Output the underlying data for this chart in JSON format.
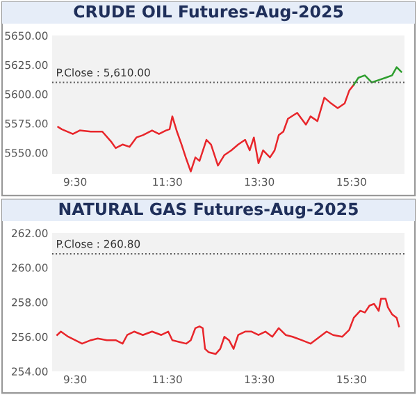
{
  "chart_data": [
    {
      "type": "line",
      "title": "CRUDE OIL Futures-Aug-2025",
      "xlim": [
        9.0,
        16.65
      ],
      "ylim": [
        5532,
        5650
      ],
      "xticks": [
        {
          "value": 9.5,
          "label": "9:30"
        },
        {
          "value": 11.5,
          "label": "11:30"
        },
        {
          "value": 13.5,
          "label": "13:30"
        },
        {
          "value": 15.5,
          "label": "15:30"
        }
      ],
      "yticks": [
        {
          "value": 5550,
          "label": "5550.00"
        },
        {
          "value": 5575,
          "label": "5575.00"
        },
        {
          "value": 5600,
          "label": "5600.00"
        },
        {
          "value": 5625,
          "label": "5625.00"
        },
        {
          "value": 5650,
          "label": "5650.00"
        }
      ],
      "ref_lines": [
        {
          "axis": "y",
          "value": 5610,
          "label": "P.Close : 5,610.00",
          "color": "#555555",
          "line_style": "dotted"
        }
      ],
      "grid": false,
      "legend": false,
      "marker": "none",
      "line_style": "solid",
      "series": [
        {
          "color": "#e8262b",
          "x": [
            9.13,
            9.21,
            9.45,
            9.6,
            9.84,
            10.09,
            10.29,
            10.38,
            10.53,
            10.68,
            10.83,
            10.97,
            11.17,
            11.32,
            11.47,
            11.55,
            11.61,
            11.71,
            11.81,
            11.91,
            12.01,
            12.11,
            12.2,
            12.35,
            12.45,
            12.6,
            12.74,
            12.89,
            13.04,
            13.19,
            13.29,
            13.38,
            13.48,
            13.58,
            13.73,
            13.83,
            13.92,
            14.02,
            14.12,
            14.32,
            14.51,
            14.61,
            14.76,
            14.91,
            15.06,
            15.2,
            15.35,
            15.45,
            15.55
          ],
          "values": [
            5572,
            5570,
            5566,
            5569,
            5568,
            5568,
            5559,
            5554,
            5557,
            5555,
            5563,
            5565,
            5569,
            5566,
            5569,
            5570,
            5581,
            5568,
            5557,
            5545,
            5534,
            5546,
            5543,
            5561,
            5557,
            5539,
            5548,
            5552,
            5557,
            5561,
            5552,
            5563,
            5541,
            5552,
            5546,
            5552,
            5565,
            5568,
            5579,
            5584,
            5574,
            5581,
            5577,
            5597,
            5592,
            5588,
            5592,
            5603,
            5608
          ]
        },
        {
          "color": "#2e9e2e",
          "x": [
            15.55,
            15.65,
            15.79,
            15.94,
            16.09,
            16.24,
            16.38,
            16.48,
            16.58
          ],
          "values": [
            5608,
            5614,
            5616,
            5610,
            5612,
            5614,
            5616,
            5623,
            5619
          ]
        }
      ]
    },
    {
      "type": "line",
      "title": "NATURAL GAS Futures-Aug-2025",
      "xlim": [
        9.0,
        16.65
      ],
      "ylim": [
        254,
        262
      ],
      "xticks": [
        {
          "value": 9.5,
          "label": "9:30"
        },
        {
          "value": 11.5,
          "label": "11:30"
        },
        {
          "value": 13.5,
          "label": "13:30"
        },
        {
          "value": 15.5,
          "label": "15:30"
        }
      ],
      "yticks": [
        {
          "value": 254,
          "label": "254.00"
        },
        {
          "value": 256,
          "label": "256.00"
        },
        {
          "value": 258,
          "label": "258.00"
        },
        {
          "value": 260,
          "label": "260.00"
        },
        {
          "value": 262,
          "label": "262.00"
        }
      ],
      "ref_lines": [
        {
          "axis": "y",
          "value": 260.8,
          "label": "P.Close : 260.80",
          "color": "#555555",
          "line_style": "dotted"
        }
      ],
      "grid": false,
      "legend": false,
      "marker": "none",
      "line_style": "solid",
      "series": [
        {
          "color": "#e8262b",
          "x": [
            9.11,
            9.19,
            9.35,
            9.5,
            9.65,
            9.84,
            9.99,
            10.19,
            10.38,
            10.53,
            10.63,
            10.78,
            10.97,
            11.17,
            11.37,
            11.52,
            11.61,
            11.76,
            11.91,
            12.01,
            12.11,
            12.2,
            12.27,
            12.32,
            12.4,
            12.55,
            12.65,
            12.74,
            12.84,
            12.94,
            13.04,
            13.19,
            13.33,
            13.48,
            13.63,
            13.78,
            13.92,
            14.07,
            14.22,
            14.42,
            14.61,
            14.81,
            14.96,
            15.1,
            15.3,
            15.45,
            15.55,
            15.69,
            15.79,
            15.89,
            15.99,
            16.09,
            16.14,
            16.24,
            16.29,
            16.38,
            16.48,
            16.53
          ],
          "values": [
            256.1,
            256.3,
            256.0,
            255.8,
            255.6,
            255.8,
            255.9,
            255.8,
            255.8,
            255.6,
            256.1,
            256.3,
            256.1,
            256.3,
            256.1,
            256.3,
            255.8,
            255.7,
            255.6,
            255.8,
            256.5,
            256.6,
            256.5,
            255.3,
            255.1,
            255.0,
            255.3,
            256.0,
            255.8,
            255.3,
            256.1,
            256.3,
            256.3,
            256.1,
            256.3,
            256.0,
            256.5,
            256.1,
            256.0,
            255.8,
            255.6,
            256.0,
            256.3,
            256.1,
            256.0,
            256.4,
            257.1,
            257.5,
            257.4,
            257.8,
            257.9,
            257.5,
            258.2,
            258.2,
            257.7,
            257.3,
            257.1,
            256.6
          ]
        }
      ]
    }
  ]
}
